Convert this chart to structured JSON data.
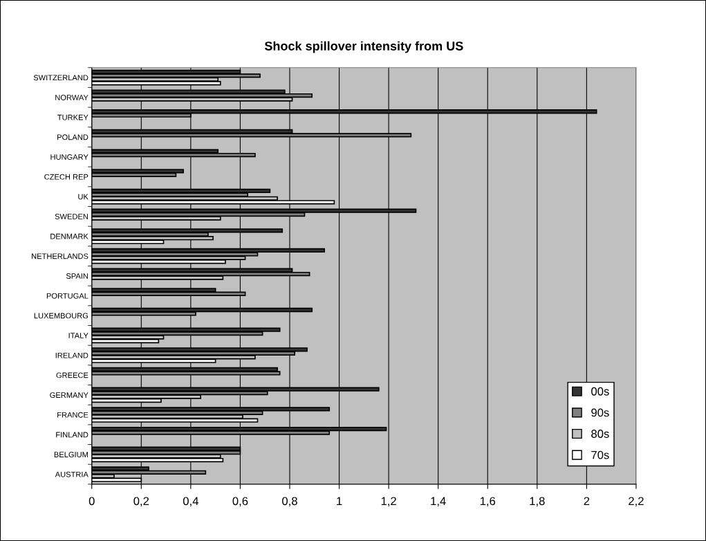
{
  "chart_data": {
    "type": "bar",
    "orientation": "horizontal",
    "title": "Shock spillover intensity from US",
    "categories": [
      "SWITZERLAND",
      "NORWAY",
      "TURKEY",
      "POLAND",
      "HUNGARY",
      "CZECH REP",
      "UK",
      "SWEDEN",
      "DENMARK",
      "NETHERLANDS",
      "SPAIN",
      "PORTUGAL",
      "LUXEMBOURG",
      "ITALY",
      "IRELAND",
      "GREECE",
      "GERMANY",
      "FRANCE",
      "FINLAND",
      "BELGIUM",
      "AUSTRIA"
    ],
    "series": [
      {
        "name": "00s",
        "color": "#333333",
        "values": [
          0.6,
          0.78,
          2.04,
          0.81,
          0.51,
          0.37,
          0.72,
          1.31,
          0.77,
          0.94,
          0.81,
          0.5,
          0.89,
          0.76,
          0.87,
          0.75,
          1.16,
          0.96,
          1.19,
          0.6,
          0.23
        ]
      },
      {
        "name": "90s",
        "color": "#808080",
        "values": [
          0.68,
          0.89,
          0.4,
          1.29,
          0.66,
          0.34,
          0.63,
          0.86,
          0.47,
          0.67,
          0.88,
          0.62,
          0.42,
          0.69,
          0.82,
          0.76,
          0.71,
          0.69,
          0.96,
          0.6,
          0.46
        ]
      },
      {
        "name": "80s",
        "color": "#c0c0c0",
        "values": [
          0.51,
          0.81,
          null,
          null,
          null,
          null,
          0.75,
          0.52,
          0.49,
          0.62,
          0.53,
          null,
          null,
          0.29,
          0.66,
          null,
          0.44,
          0.61,
          null,
          0.52,
          0.09
        ]
      },
      {
        "name": "70s",
        "color": "#ffffff",
        "values": [
          0.52,
          null,
          null,
          null,
          null,
          null,
          0.98,
          null,
          0.29,
          0.54,
          null,
          null,
          null,
          0.27,
          0.5,
          null,
          0.28,
          0.67,
          null,
          0.53,
          0.2
        ]
      }
    ],
    "xlim": [
      0,
      2.2
    ],
    "xticks": [
      0,
      {
        "value": 0.2,
        "label": "0,2"
      },
      {
        "value": 0.4,
        "label": "0,4"
      },
      {
        "value": 0.6,
        "label": "0,6"
      },
      {
        "value": 0.8,
        "label": "0,8"
      },
      1,
      {
        "value": 1.2,
        "label": "1,2"
      },
      {
        "value": 1.4,
        "label": "1,4"
      },
      {
        "value": 1.6,
        "label": "1,6"
      },
      {
        "value": 1.8,
        "label": "1,8"
      },
      2,
      {
        "value": 2.2,
        "label": "2,2"
      }
    ],
    "grid": "x",
    "legend": "bottom right"
  }
}
